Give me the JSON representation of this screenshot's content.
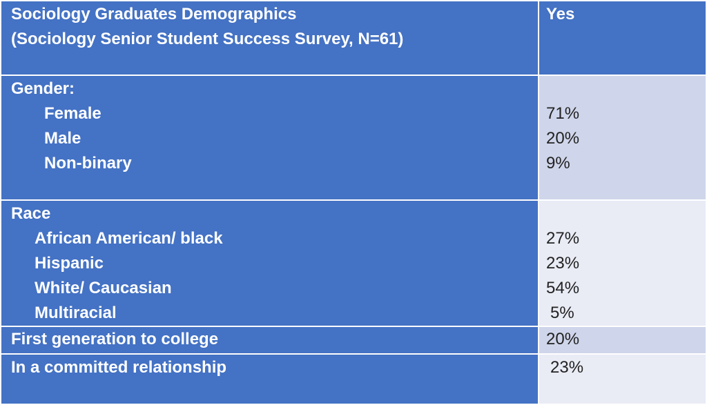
{
  "header": {
    "title_line1": "Sociology Graduates Demographics",
    "title_line2": "(Sociology Senior Student Success Survey, N=61)",
    "col_label": "Yes"
  },
  "gender": {
    "label": "Gender:",
    "items": [
      {
        "label": "Female",
        "value": "71%"
      },
      {
        "label": "Male",
        "value": "20%"
      },
      {
        "label": "Non-binary",
        "value": "9%"
      }
    ]
  },
  "race": {
    "label": "Race",
    "items": [
      {
        "label": "African American/ black",
        "value": "27%"
      },
      {
        "label": "Hispanic",
        "value": "23%"
      },
      {
        "label": "White/ Caucasian",
        "value": "54%"
      },
      {
        "label": "Multiracial",
        "value": "5%"
      }
    ]
  },
  "first_generation": {
    "label": "First generation to college",
    "value": "20%"
  },
  "relationship": {
    "label": "In a committed relationship",
    "value": "23%"
  },
  "colors": {
    "header_blue": "#4472C4",
    "band_dark": "#CFD5EA",
    "band_light": "#E9EBF5"
  }
}
